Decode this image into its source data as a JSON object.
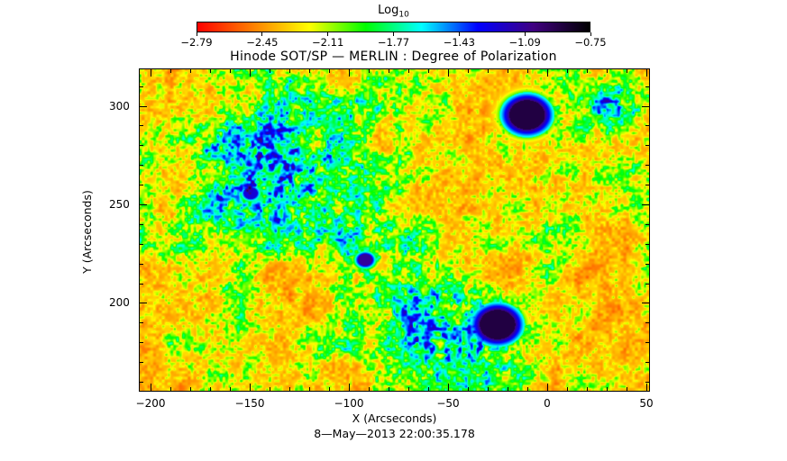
{
  "chart_data": {
    "type": "heatmap",
    "title": "Hinode SOT/SP — MERLIN : Degree of Polarization",
    "xlabel": "X (Arcseconds)",
    "ylabel": "Y (Arcseconds)",
    "timestamp": "8—May—2013 22:00:35.178",
    "xlim": [
      -206,
      52
    ],
    "ylim": [
      155,
      319
    ],
    "x_ticks": [
      -200,
      -150,
      -100,
      -50,
      0,
      50
    ],
    "x_tick_labels": [
      "−200",
      "−150",
      "−100",
      "−50",
      "0",
      "50"
    ],
    "y_ticks": [
      200,
      250,
      300
    ],
    "y_tick_labels": [
      "200",
      "250",
      "300"
    ],
    "colorbar": {
      "title": "Log",
      "title_subscript": "10",
      "range": [
        -2.79,
        -0.75
      ],
      "ticks": [
        -2.79,
        -2.45,
        -2.11,
        -1.77,
        -1.43,
        -1.09,
        -0.75
      ],
      "tick_labels": [
        "−2.79",
        "−2.45",
        "−2.11",
        "−1.77",
        "−1.43",
        "−1.09",
        "−0.75"
      ],
      "colormap": [
        "#ff0000",
        "#ff8000",
        "#ffff00",
        "#00ff00",
        "#00ffff",
        "#0000ff",
        "#400080",
        "#000000"
      ]
    },
    "features": [
      {
        "kind": "sunspot",
        "x": -10,
        "y": 296,
        "log_value": -0.85
      },
      {
        "kind": "sunspot",
        "x": -25,
        "y": 189,
        "log_value": -0.85
      },
      {
        "kind": "pore",
        "x": -92,
        "y": 222,
        "log_value": -1.0
      },
      {
        "kind": "pore",
        "x": -150,
        "y": 256,
        "log_value": -1.1
      }
    ]
  }
}
